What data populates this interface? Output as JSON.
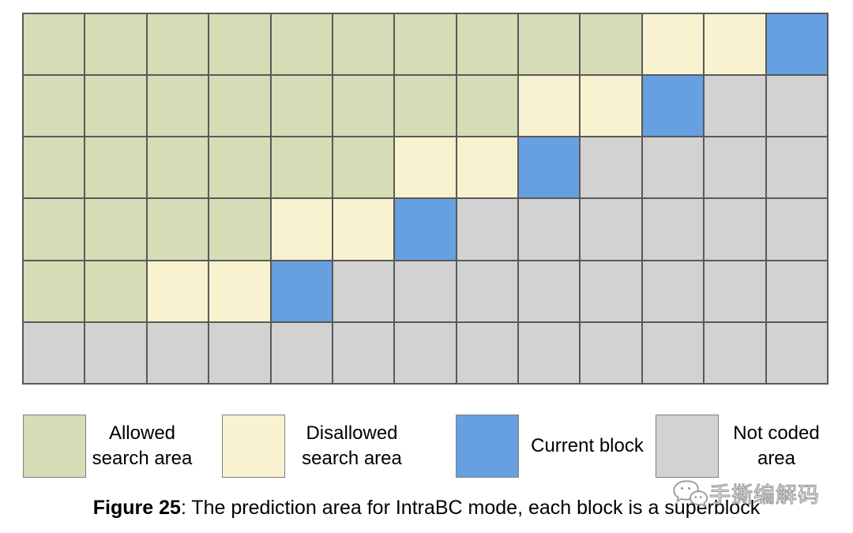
{
  "colors": {
    "allowed": "#d5dcb6",
    "disallowed": "#f8f2d0",
    "current": "#67a0e1",
    "not_coded": "#d2d2d2",
    "grid_line": "#595959",
    "swatch_border": "#808080"
  },
  "grid": {
    "rows": 6,
    "cols": 13,
    "legend_keys": {
      "A": "allowed",
      "D": "disallowed",
      "C": "current",
      "N": "not_coded"
    },
    "pattern": [
      "AAAAAAAAAADDC",
      "AAAAAAAADDCNN",
      "AAAAAADDCNNNN",
      "AAAADDCNNNNNN",
      "AADDCNNNNNNNN",
      "NNNNNNNNNNNNN"
    ]
  },
  "legend": [
    {
      "key": "allowed",
      "label": "Allowed\nsearch area"
    },
    {
      "key": "disallowed",
      "label": "Disallowed\nsearch area"
    },
    {
      "key": "current",
      "label": "Current block"
    },
    {
      "key": "not_coded",
      "label": "Not coded\narea"
    }
  ],
  "caption": {
    "label": "Figure 25",
    "text": ": The prediction area for IntraBC mode, each block is a superblock"
  },
  "watermark": {
    "icon": "chat-bubbles-icon",
    "text": "手撕编解码"
  }
}
